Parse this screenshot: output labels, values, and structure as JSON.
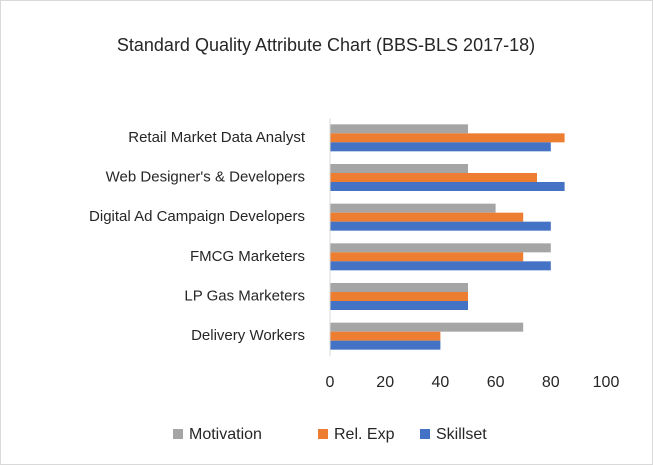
{
  "chart_data": {
    "type": "bar",
    "orientation": "horizontal",
    "title": "Standard Quality Attribute Chart (BBS-BLS 2017-18)",
    "categories": [
      "Retail Market Data Analyst",
      "Web Designer's & Developers",
      "Digital Ad Campaign Developers",
      "FMCG Marketers",
      "LP Gas Marketers",
      "Delivery Workers"
    ],
    "series": [
      {
        "name": "Motivation",
        "color": "#a5a5a5",
        "values": [
          50,
          50,
          60,
          80,
          50,
          70
        ]
      },
      {
        "name": "Rel. Exp",
        "color": "#ed7d31",
        "values": [
          85,
          75,
          70,
          70,
          50,
          40
        ]
      },
      {
        "name": "Skillset",
        "color": "#4472c4",
        "values": [
          80,
          85,
          80,
          80,
          50,
          40
        ]
      }
    ],
    "xlim": [
      0,
      100
    ],
    "xticks": [
      0,
      20,
      40,
      60,
      80,
      100
    ],
    "grid": false,
    "legend": "bottom"
  }
}
